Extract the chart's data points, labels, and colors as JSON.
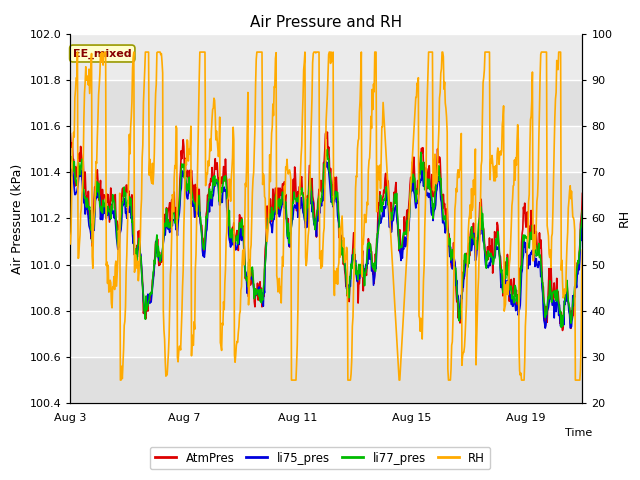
{
  "title": "Air Pressure and RH",
  "xlabel": "Time",
  "ylabel_left": "Air Pressure (kPa)",
  "ylabel_right": "RH",
  "ylim_left": [
    100.4,
    102.0
  ],
  "ylim_right": [
    20,
    100
  ],
  "yticks_left": [
    100.4,
    100.6,
    100.8,
    101.0,
    101.2,
    101.4,
    101.6,
    101.8,
    102.0
  ],
  "yticks_right": [
    20,
    30,
    40,
    50,
    60,
    70,
    80,
    90,
    100
  ],
  "xtick_labels": [
    "Aug 3",
    "Aug 7",
    "Aug 11",
    "Aug 15",
    "Aug 19"
  ],
  "xtick_positions": [
    0,
    4,
    8,
    12,
    16
  ],
  "legend_labels": [
    "AtmPres",
    "li75_pres",
    "li77_pres",
    "RH"
  ],
  "legend_colors": [
    "#dd0000",
    "#0000dd",
    "#00bb00",
    "#ffaa00"
  ],
  "annotation_text": "EE_mixed",
  "bg_color": "#ffffff",
  "plot_bg_color": "#e8e8e8",
  "plot_bg_color2": "#d8d8d8",
  "line_colors": [
    "#dd0000",
    "#0000dd",
    "#00bb00",
    "#ffaa00"
  ],
  "n_points": 800,
  "seed": 7
}
